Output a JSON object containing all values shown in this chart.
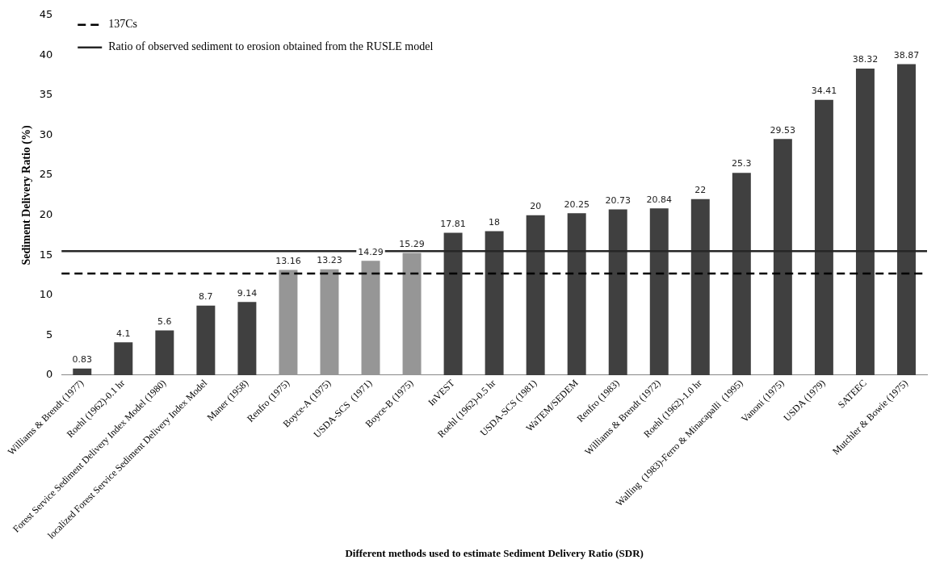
{
  "chart_data": {
    "type": "bar",
    "xlabel": "Different methods used to estimate Sediment Delivery Ratio (SDR)",
    "ylabel": "Sediment Delivery Ratio (%)",
    "categories": [
      "Williams & Brendt (1977)",
      "Roehl (1962)-0.1 hr",
      "Forest Service Sediment Delivery Index Model (1980)",
      "localized Forest Service Sediment Delivery Index Model",
      "Maner (1958)",
      "Renfro (1975)",
      "Boyce-A (1975)",
      "USDA-SCS  (1971)",
      "Boyce-B (1975)",
      "InVEST",
      "Roehl (1962)-0.5 hr",
      "USDA-SCS (1981)",
      "WaTEM/SEDEM",
      "Renfro (1983)",
      "Williams & Brendt (1972)",
      "Roehl (1962)-1.0 hr",
      "Walling  (1983)-Ferro & Minacapalli  (1995)",
      "Vanoni (1975)",
      "USDA (1979)",
      "SATEEC",
      "Mutchler & Bowie (1975)"
    ],
    "values": [
      0.83,
      4.1,
      5.6,
      8.7,
      9.14,
      13.16,
      13.23,
      14.29,
      15.29,
      17.81,
      18,
      20,
      20.25,
      20.73,
      20.84,
      22,
      25.3,
      29.53,
      34.41,
      38.32,
      38.87
    ],
    "colors": [
      "#404040",
      "#404040",
      "#404040",
      "#404040",
      "#404040",
      "#969696",
      "#969696",
      "#969696",
      "#969696",
      "#404040",
      "#404040",
      "#404040",
      "#404040",
      "#404040",
      "#404040",
      "#404040",
      "#404040",
      "#404040",
      "#404040",
      "#404040",
      "#404040"
    ],
    "ylim": [
      0,
      45
    ],
    "yticks": [
      0,
      5,
      10,
      15,
      20,
      25,
      30,
      35,
      40,
      45
    ],
    "grid": false,
    "data_labels": true,
    "legend": "top left",
    "ref_lines": [
      {
        "axis": "y",
        "value": 12.7,
        "label": "137Cs",
        "line_style": "dashed",
        "color": "#000000"
      },
      {
        "axis": "y",
        "value": 15.5,
        "label": "Ratio of observed sediment to erosion obtained from the RUSLE model",
        "line_style": "solid",
        "color": "#262626"
      }
    ]
  }
}
